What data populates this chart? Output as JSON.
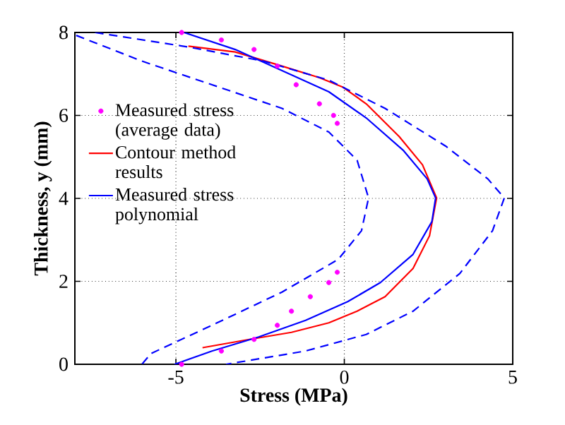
{
  "chart_data": {
    "type": "line",
    "xlabel": "Stress (MPa)",
    "ylabel": "Thickness, y (mm)",
    "xlim": [
      -8,
      5
    ],
    "ylim": [
      0,
      8
    ],
    "xticks": [
      -5,
      0,
      5
    ],
    "yticks": [
      0,
      2,
      4,
      6,
      8
    ],
    "grid": true,
    "legend": "left",
    "series": [
      {
        "name": "Measured stress (average data)",
        "type": "scatter",
        "marker": "circle",
        "color": "#ff00ff",
        "x": [
          -4.83,
          -3.65,
          -2.68,
          -1.99,
          -1.43,
          -0.74,
          -0.32,
          -0.21,
          null,
          -0.21,
          -0.46,
          -1.01,
          -1.57,
          -1.99,
          -2.68,
          -3.65,
          -4.83
        ],
        "values": [
          8,
          7.82,
          7.59,
          7.19,
          6.74,
          6.28,
          6.0,
          5.81,
          null,
          2.22,
          1.97,
          1.63,
          1.28,
          0.94,
          0.6,
          0.32,
          0
        ]
      },
      {
        "name": "Contour method results",
        "line_style": "solid",
        "color": "#ff0000",
        "x": [
          -4.63,
          -3.24,
          -1.85,
          -0.74,
          -0.04,
          0.65,
          1.63,
          2.32,
          2.74,
          2.53,
          2.04,
          1.21,
          0.38,
          -0.46,
          -1.57,
          -2.82,
          -4.21
        ],
        "values": [
          7.67,
          7.53,
          7.19,
          6.91,
          6.68,
          6.28,
          5.49,
          4.81,
          4.01,
          3.1,
          2.31,
          1.63,
          1.28,
          1.0,
          0.77,
          0.6,
          0.4
        ]
      },
      {
        "name": "Measured stress polynomial",
        "line_style": "solid",
        "color": "#0000ff",
        "x": [
          -4.76,
          -3.24,
          -1.85,
          -0.46,
          0.65,
          1.76,
          2.46,
          2.71,
          2.6,
          2.04,
          1.07,
          0.1,
          -1.15,
          -2.54,
          -3.93,
          -5.04
        ],
        "values": [
          8,
          7.59,
          7.08,
          6.57,
          5.94,
          5.15,
          4.47,
          4.01,
          3.44,
          2.65,
          1.97,
          1.51,
          1.06,
          0.66,
          0.32,
          0
        ]
      },
      {
        "line_style": "dashed",
        "color": "#0000ff",
        "x": [
          -7.4,
          -4.63,
          -2.4,
          -0.46,
          1.21,
          3.01,
          4.26,
          4.75,
          4.4,
          3.43,
          2.04,
          0.65,
          -1.15,
          -3.51
        ],
        "values": [
          8,
          7.65,
          7.31,
          6.85,
          6.17,
          5.26,
          4.47,
          4.01,
          3.22,
          2.19,
          1.28,
          0.72,
          0.32,
          0
        ]
      },
      {
        "line_style": "dashed",
        "color": "#0000ff",
        "x": [
          -7.96,
          -6.01,
          -3.93,
          -1.85,
          -0.46,
          0.38,
          0.72,
          0.51,
          -0.18,
          -1.85,
          -3.93,
          -5.74,
          -6.01
        ],
        "values": [
          7.93,
          7.31,
          6.74,
          6.17,
          5.6,
          4.92,
          4.01,
          3.22,
          2.53,
          1.74,
          0.94,
          0.26,
          0
        ]
      }
    ]
  }
}
